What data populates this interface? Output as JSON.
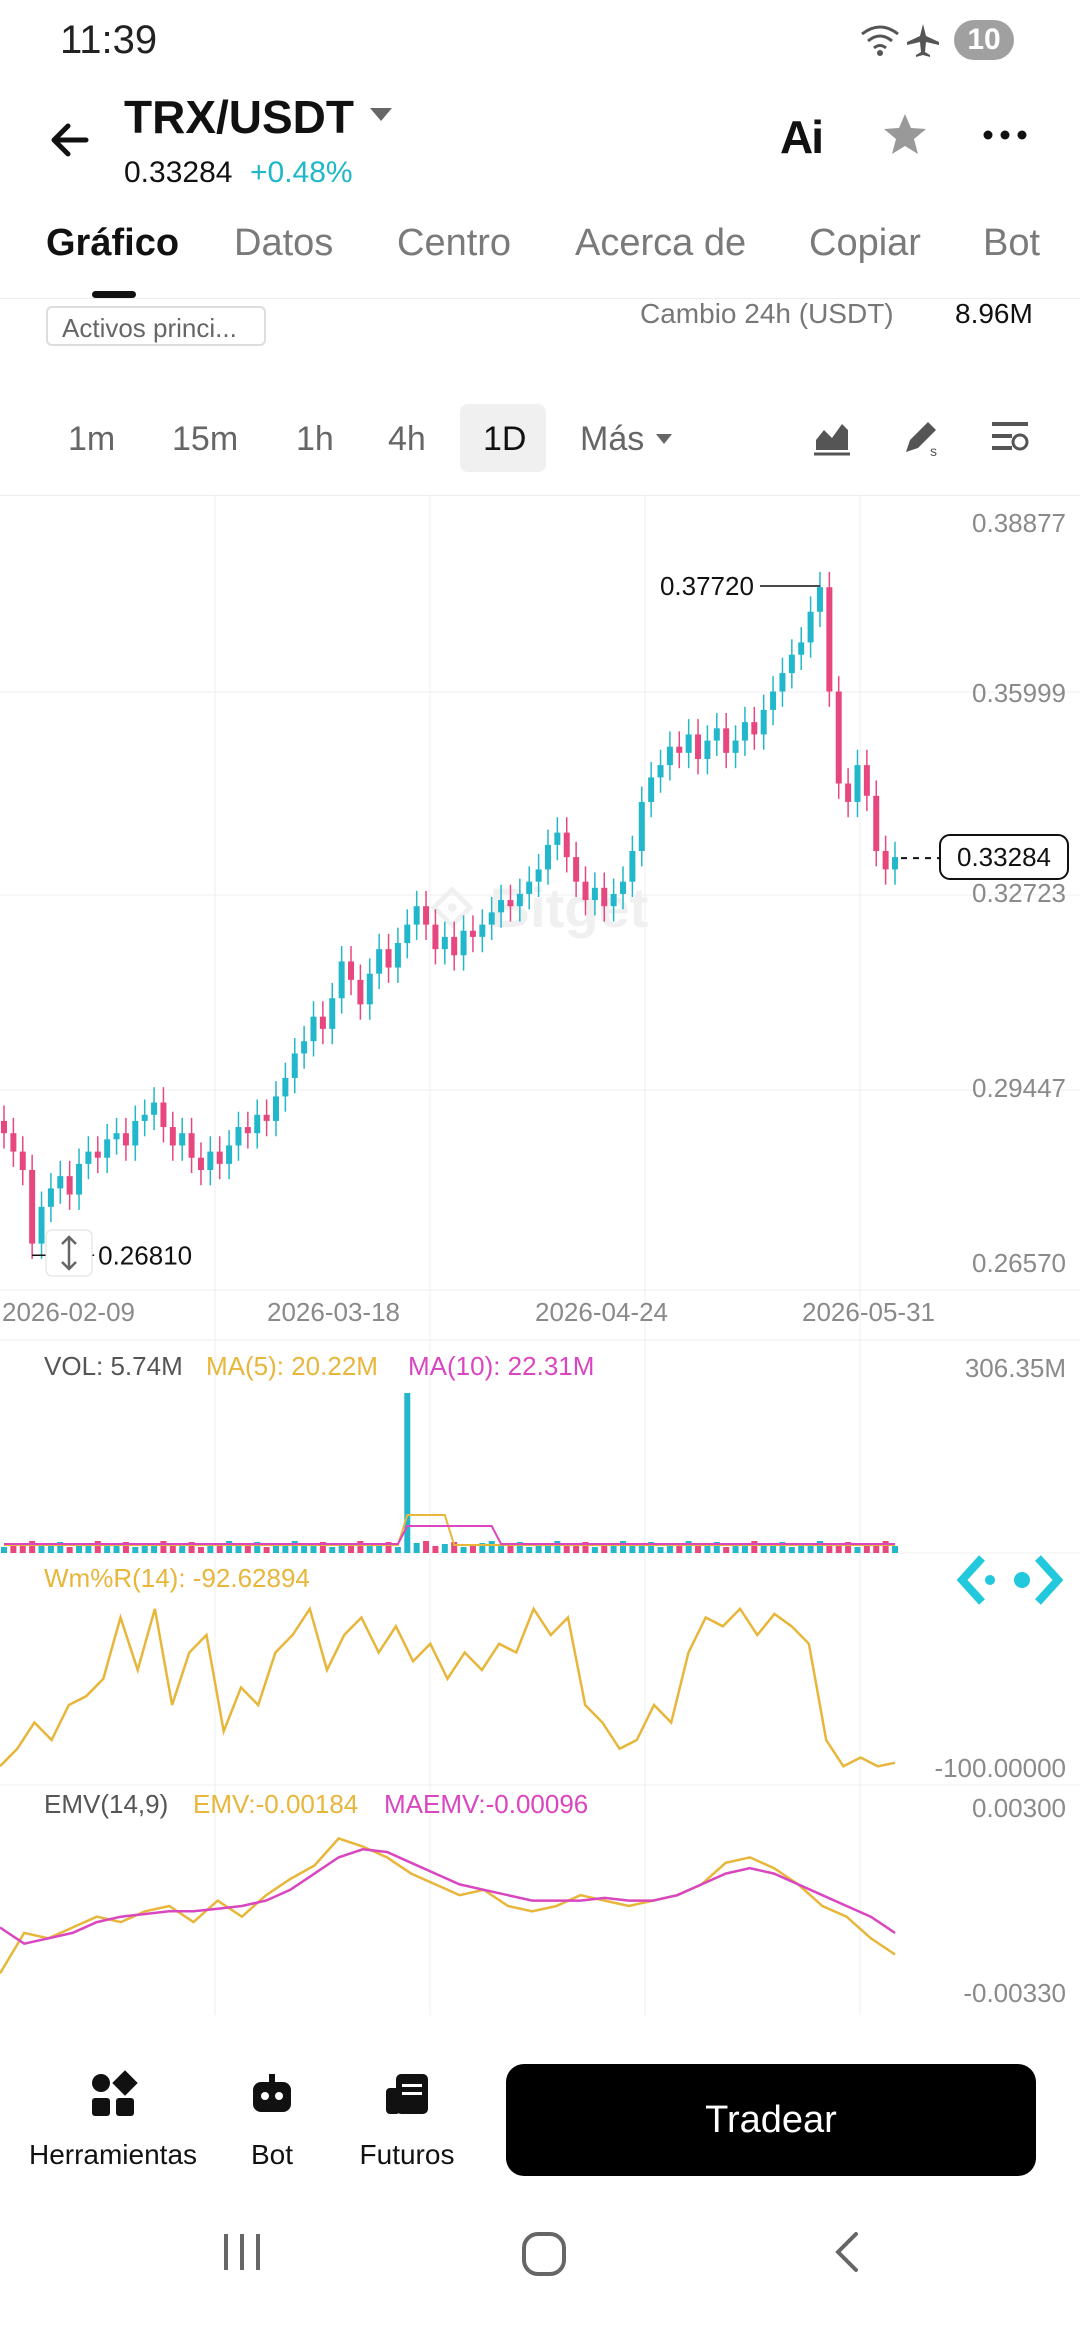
{
  "status_bar": {
    "time": "11:39",
    "battery": "10"
  },
  "header": {
    "pair": "TRX/USDT",
    "price": "0.33284",
    "change": "+0.48%",
    "ai_label": "Ai"
  },
  "tabs": [
    {
      "label": "Gráfico"
    },
    {
      "label": "Datos"
    },
    {
      "label": "Centro"
    },
    {
      "label": "Acerca de"
    },
    {
      "label": "Copiar"
    },
    {
      "label": "Bot"
    }
  ],
  "info_row": {
    "chip": "Activos princi...",
    "change_24h_label": "Cambio 24h (USDT)",
    "change_24h_value": "8.96M"
  },
  "intervals": [
    {
      "label": "1m"
    },
    {
      "label": "15m"
    },
    {
      "label": "1h"
    },
    {
      "label": "4h"
    },
    {
      "label": "1D",
      "active": true
    },
    {
      "label": "Más"
    }
  ],
  "colors": {
    "up": "#22b7cb",
    "down": "#e7477f",
    "accent": "#20b8c8",
    "ma5": "#e7b63a",
    "ma10": "#d946c0"
  },
  "chart_data": [
    {
      "type": "candlestick",
      "title": "TRX/USDT 1D",
      "y_ticks": [
        "0.38877",
        "0.35999",
        "0.32723",
        "0.29447",
        "0.26570"
      ],
      "x_ticks": [
        "2026-02-09",
        "2026-03-18",
        "2026-04-24",
        "2026-05-31"
      ],
      "ylim": [
        0.2657,
        0.38877
      ],
      "high_label": "0.37720",
      "low_label": "0.26810",
      "last_price_label": "0.33284",
      "close_series": [
        0.288,
        0.285,
        0.282,
        0.27,
        0.276,
        0.279,
        0.281,
        0.278,
        0.283,
        0.285,
        0.284,
        0.287,
        0.288,
        0.286,
        0.29,
        0.291,
        0.293,
        0.289,
        0.286,
        0.288,
        0.284,
        0.282,
        0.285,
        0.283,
        0.286,
        0.289,
        0.288,
        0.291,
        0.29,
        0.294,
        0.297,
        0.301,
        0.303,
        0.307,
        0.305,
        0.31,
        0.316,
        0.313,
        0.309,
        0.314,
        0.318,
        0.315,
        0.319,
        0.322,
        0.325,
        0.322,
        0.318,
        0.32,
        0.317,
        0.321,
        0.32,
        0.322,
        0.324,
        0.326,
        0.325,
        0.327,
        0.329,
        0.331,
        0.335,
        0.337,
        0.333,
        0.329,
        0.326,
        0.328,
        0.325,
        0.327,
        0.329,
        0.334,
        0.342,
        0.346,
        0.348,
        0.351,
        0.35,
        0.353,
        0.349,
        0.352,
        0.354,
        0.35,
        0.352,
        0.355,
        0.353,
        0.357,
        0.36,
        0.363,
        0.366,
        0.368,
        0.373,
        0.377,
        0.36,
        0.345,
        0.342,
        0.348,
        0.343,
        0.334,
        0.331,
        0.333
      ]
    },
    {
      "type": "bar",
      "title": "VOL",
      "vol_label": "VOL: 5.74M",
      "ma5_label": "MA(5): 20.22M",
      "ma10_label": "MA(10): 22.31M",
      "y_tick": "306.35M"
    },
    {
      "type": "line",
      "title": "Wm%R(14)",
      "label": "Wm%R(14): -92.62894",
      "y_tick": "-100.00000",
      "series_values": [
        -95,
        -85,
        -70,
        -80,
        -60,
        -55,
        -45,
        -10,
        -40,
        -5,
        -60,
        -30,
        -20,
        -75,
        -50,
        -60,
        -30,
        -20,
        -5,
        -40,
        -20,
        -10,
        -30,
        -15,
        -35,
        -25,
        -45,
        -30,
        -40,
        -25,
        -30,
        -5,
        -20,
        -10,
        -60,
        -70,
        -85,
        -80,
        -60,
        -70,
        -30,
        -10,
        -15,
        -5,
        -20,
        -8,
        -15,
        -25,
        -80,
        -95,
        -90,
        -95,
        -93
      ]
    },
    {
      "type": "line",
      "title": "EMV(14,9)",
      "label_emv": "EMV:-0.00184",
      "label_maemv": "MAEMV:-0.00096",
      "y_ticks": [
        "0.00300",
        "-0.00330"
      ],
      "emv": [
        -0.0025,
        -0.001,
        -0.0012,
        -0.0008,
        -0.0004,
        -0.0006,
        -0.0002,
        0.0,
        -0.0006,
        0.0002,
        -0.0004,
        0.0004,
        0.001,
        0.0015,
        0.0025,
        0.0022,
        0.0018,
        0.0012,
        0.0008,
        0.0004,
        0.0006,
        0.0,
        -0.0002,
        0.0,
        0.0004,
        0.0002,
        0.0,
        0.0002,
        0.0004,
        0.0008,
        0.0016,
        0.0018,
        0.0014,
        0.0008,
        0.0,
        -0.0004,
        -0.0012,
        -0.0018
      ],
      "maemv": [
        -0.0008,
        -0.0014,
        -0.0012,
        -0.001,
        -0.0006,
        -0.0004,
        -0.0003,
        -0.0002,
        -0.0002,
        -0.0001,
        0.0,
        0.0002,
        0.0006,
        0.0012,
        0.0018,
        0.0021,
        0.002,
        0.0016,
        0.0012,
        0.0008,
        0.0006,
        0.0004,
        0.0002,
        0.0002,
        0.0002,
        0.0003,
        0.0002,
        0.0002,
        0.0004,
        0.0008,
        0.0012,
        0.0014,
        0.0012,
        0.0008,
        0.0004,
        0.0,
        -0.0004,
        -0.001
      ]
    }
  ],
  "bottom_nav": {
    "tools": "Herramientas",
    "bot": "Bot",
    "futures": "Futuros",
    "trade": "Tradear"
  }
}
